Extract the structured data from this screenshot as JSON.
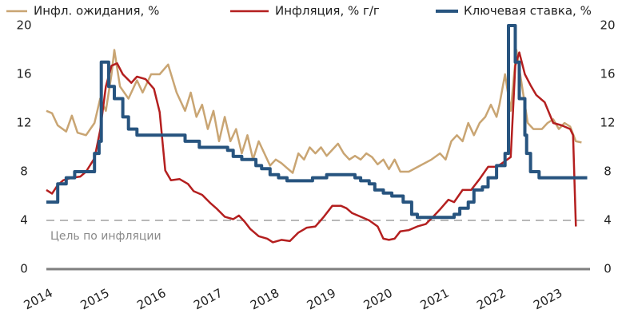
{
  "chart_data": {
    "type": "line",
    "xlim": [
      2014,
      2023.6
    ],
    "xticks": [
      2014,
      2015,
      2016,
      2017,
      2018,
      2019,
      2020,
      2021,
      2022,
      2023
    ],
    "ylim": [
      0,
      20
    ],
    "yticks": [
      0,
      4,
      8,
      12,
      16,
      20
    ],
    "y2lim": [
      0,
      20
    ],
    "y2ticks": [
      0,
      4,
      8,
      12,
      16,
      20
    ],
    "target": 4,
    "target_label": "Цель по инфляции",
    "series": [
      {
        "name": "Инфл. ожидания, %",
        "color": "#c9a573",
        "x": [
          2014.0,
          2014.1,
          2014.2,
          2014.35,
          2014.45,
          2014.55,
          2014.7,
          2014.85,
          2014.95,
          2015.05,
          2015.15,
          2015.2,
          2015.3,
          2015.45,
          2015.6,
          2015.7,
          2015.85,
          2016.0,
          2016.15,
          2016.3,
          2016.45,
          2016.55,
          2016.65,
          2016.75,
          2016.85,
          2016.95,
          2017.05,
          2017.15,
          2017.25,
          2017.35,
          2017.45,
          2017.55,
          2017.65,
          2017.75,
          2017.85,
          2017.95,
          2018.05,
          2018.15,
          2018.25,
          2018.35,
          2018.45,
          2018.55,
          2018.65,
          2018.75,
          2018.85,
          2018.95,
          2019.05,
          2019.15,
          2019.25,
          2019.35,
          2019.45,
          2019.55,
          2019.65,
          2019.75,
          2019.85,
          2019.95,
          2020.05,
          2020.15,
          2020.25,
          2020.4,
          2020.6,
          2020.8,
          2020.95,
          2021.05,
          2021.15,
          2021.25,
          2021.35,
          2021.45,
          2021.55,
          2021.65,
          2021.75,
          2021.85,
          2021.95,
          2022.0,
          2022.1,
          2022.2,
          2022.3,
          2022.4,
          2022.5,
          2022.6,
          2022.75,
          2022.85,
          2022.95,
          2023.05,
          2023.15,
          2023.25,
          2023.35,
          2023.45
        ],
        "values": [
          13,
          12.8,
          11.8,
          11.3,
          12.6,
          11.2,
          11,
          12,
          14,
          13,
          16,
          18,
          15,
          14,
          15.5,
          14.5,
          16,
          16,
          16.8,
          14.5,
          13,
          14.5,
          12.5,
          13.5,
          11.5,
          13,
          10.5,
          12.5,
          10.5,
          11.5,
          9.5,
          11,
          9,
          10.5,
          9.5,
          8.5,
          9,
          8.7,
          8.3,
          7.9,
          9.5,
          9,
          10,
          9.5,
          10,
          9.3,
          9.8,
          10.3,
          9.5,
          9,
          9.3,
          9,
          9.5,
          9.2,
          8.6,
          9,
          8.2,
          9,
          8,
          8,
          8.5,
          9,
          9.5,
          9,
          10.5,
          11,
          10.5,
          12,
          11,
          12,
          12.5,
          13.5,
          12.5,
          13.5,
          16,
          13,
          18,
          15,
          12,
          11.5,
          11.5,
          12,
          12.3,
          11.5,
          12,
          11.7,
          10.5,
          10.4
        ]
      },
      {
        "name": "Инфляция, % г/г",
        "color": "#b41f1f",
        "x": [
          2014.0,
          2014.1,
          2014.2,
          2014.3,
          2014.45,
          2014.6,
          2014.7,
          2014.85,
          2014.95,
          2015.05,
          2015.15,
          2015.25,
          2015.35,
          2015.5,
          2015.6,
          2015.75,
          2015.9,
          2016.0,
          2016.1,
          2016.2,
          2016.35,
          2016.5,
          2016.6,
          2016.75,
          2016.9,
          2017.0,
          2017.15,
          2017.3,
          2017.4,
          2017.5,
          2017.6,
          2017.75,
          2017.9,
          2018.0,
          2018.15,
          2018.3,
          2018.45,
          2018.6,
          2018.75,
          2018.9,
          2019.05,
          2019.2,
          2019.3,
          2019.4,
          2019.55,
          2019.7,
          2019.85,
          2019.95,
          2020.05,
          2020.15,
          2020.25,
          2020.4,
          2020.55,
          2020.7,
          2020.85,
          2020.95,
          2021.1,
          2021.2,
          2021.35,
          2021.5,
          2021.65,
          2021.8,
          2021.95,
          2022.05,
          2022.2,
          2022.28,
          2022.35,
          2022.45,
          2022.55,
          2022.65,
          2022.8,
          2022.95,
          2023.1,
          2023.25,
          2023.3,
          2023.35
        ],
        "values": [
          6.5,
          6.2,
          6.9,
          7.3,
          7.5,
          7.6,
          8,
          9.1,
          11.4,
          15,
          16.7,
          16.9,
          16,
          15.3,
          15.8,
          15.6,
          14.8,
          12.9,
          8.1,
          7.3,
          7.4,
          7,
          6.4,
          6.1,
          5.4,
          5,
          4.3,
          4.1,
          4.4,
          3.9,
          3.3,
          2.7,
          2.5,
          2.2,
          2.4,
          2.3,
          3,
          3.4,
          3.5,
          4.3,
          5.2,
          5.2,
          5,
          4.6,
          4.3,
          4,
          3.5,
          2.5,
          2.4,
          2.5,
          3.1,
          3.2,
          3.5,
          3.7,
          4.4,
          4.9,
          5.7,
          5.5,
          6.5,
          6.5,
          7.4,
          8.4,
          8.4,
          8.7,
          9.2,
          16.7,
          17.8,
          16,
          15.1,
          14.3,
          13.7,
          12,
          11.8,
          11.5,
          11,
          3.5
        ]
      },
      {
        "name": "Ключевая ставка, %",
        "color": "#27547f",
        "x": [
          2014.0,
          2014.2,
          2014.2,
          2014.35,
          2014.35,
          2014.5,
          2014.5,
          2014.85,
          2014.85,
          2014.93,
          2014.93,
          2014.97,
          2014.97,
          2015.1,
          2015.1,
          2015.2,
          2015.2,
          2015.35,
          2015.35,
          2015.45,
          2015.45,
          2015.6,
          2015.6,
          2016.45,
          2016.45,
          2016.7,
          2016.7,
          2017.2,
          2017.2,
          2017.3,
          2017.3,
          2017.45,
          2017.45,
          2017.7,
          2017.7,
          2017.8,
          2017.8,
          2017.95,
          2017.95,
          2018.1,
          2018.1,
          2018.25,
          2018.25,
          2018.7,
          2018.7,
          2018.95,
          2018.95,
          2019.45,
          2019.45,
          2019.55,
          2019.55,
          2019.7,
          2019.7,
          2019.8,
          2019.8,
          2019.95,
          2019.95,
          2020.1,
          2020.1,
          2020.3,
          2020.3,
          2020.45,
          2020.45,
          2020.55,
          2020.55,
          2021.2,
          2021.2,
          2021.3,
          2021.3,
          2021.45,
          2021.45,
          2021.55,
          2021.55,
          2021.7,
          2021.7,
          2021.8,
          2021.8,
          2021.95,
          2021.95,
          2022.1,
          2022.1,
          2022.16,
          2022.16,
          2022.28,
          2022.28,
          2022.35,
          2022.35,
          2022.45,
          2022.45,
          2022.48,
          2022.48,
          2022.55,
          2022.55,
          2022.7,
          2022.7,
          2023.55
        ],
        "values": [
          5.5,
          5.5,
          7,
          7,
          7.5,
          7.5,
          8,
          8,
          9.5,
          9.5,
          10.5,
          10.5,
          17,
          17,
          15,
          15,
          14,
          14,
          12.5,
          12.5,
          11.5,
          11.5,
          11,
          11,
          10.5,
          10.5,
          10,
          10,
          9.75,
          9.75,
          9.25,
          9.25,
          9,
          9,
          8.5,
          8.5,
          8.25,
          8.25,
          7.75,
          7.75,
          7.5,
          7.5,
          7.25,
          7.25,
          7.5,
          7.5,
          7.75,
          7.75,
          7.5,
          7.5,
          7.25,
          7.25,
          7,
          7,
          6.5,
          6.5,
          6.25,
          6.25,
          6,
          6,
          5.5,
          5.5,
          4.5,
          4.5,
          4.25,
          4.25,
          4.5,
          4.5,
          5,
          5,
          5.5,
          5.5,
          6.5,
          6.5,
          6.75,
          6.75,
          7.5,
          7.5,
          8.5,
          8.5,
          9.5,
          9.5,
          20,
          20,
          17,
          17,
          14,
          14,
          11,
          11,
          9.5,
          9.5,
          8,
          8,
          7.5,
          7.5
        ]
      }
    ]
  }
}
